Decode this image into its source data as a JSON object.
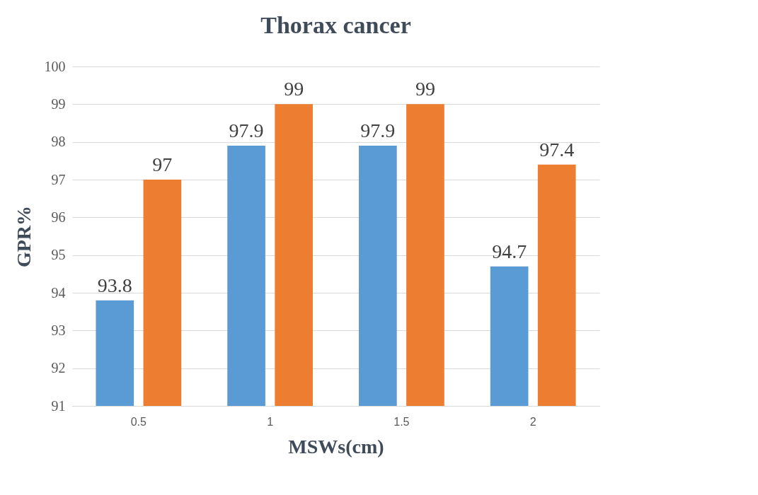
{
  "chart_data": {
    "type": "bar",
    "title": "Thorax cancer",
    "xlabel": "MSWs(cm)",
    "ylabel": "GPR%",
    "categories": [
      "0.5",
      "1",
      "1.5",
      "2"
    ],
    "series": [
      {
        "color": "#5b9bd5",
        "values": [
          93.8,
          97.9,
          97.9,
          94.7
        ]
      },
      {
        "color": "#ed7d31",
        "values": [
          97,
          99,
          99,
          97.4
        ]
      }
    ],
    "ylim": [
      91,
      100
    ],
    "yticks": [
      91,
      92,
      93,
      94,
      95,
      96,
      97,
      98,
      99,
      100
    ],
    "grid": "y",
    "data_labels": true
  }
}
